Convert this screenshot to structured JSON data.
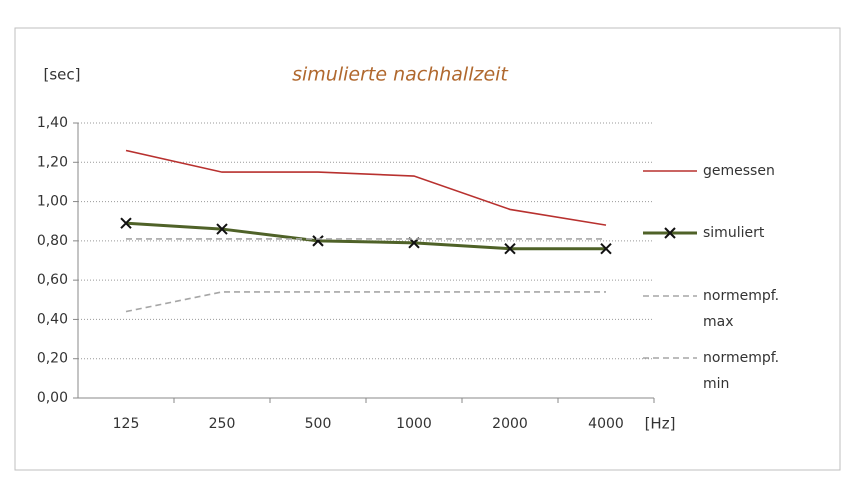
{
  "chart_data": {
    "type": "line",
    "title": "simulierte nachhallzeit",
    "y_label": "[sec]",
    "x_label": "[Hz]",
    "categories": [
      "125",
      "250",
      "500",
      "1000",
      "2000",
      "4000"
    ],
    "ylim": [
      0,
      1.4
    ],
    "yticks": [
      {
        "value": 0,
        "label": "0,00"
      },
      {
        "value": 0.2,
        "label": "0,20"
      },
      {
        "value": 0.4,
        "label": "0,40"
      },
      {
        "value": 0.6,
        "label": "0,60"
      },
      {
        "value": 0.8,
        "label": "0,80"
      },
      {
        "value": 1.0,
        "label": "1,00"
      },
      {
        "value": 1.2,
        "label": "1,20"
      },
      {
        "value": 1.4,
        "label": "1,40"
      }
    ],
    "grid": true,
    "legend": "right",
    "series": [
      {
        "name": "gemessen",
        "color": "#b8312f",
        "line_style": "solid",
        "values": [
          1.26,
          1.15,
          1.15,
          1.13,
          0.96,
          0.88
        ]
      },
      {
        "name": "simuliert",
        "color": "#4f6228",
        "line_style": "solid",
        "marker": "x",
        "values": [
          0.89,
          0.86,
          0.8,
          0.79,
          0.76,
          0.76
        ]
      },
      {
        "name": "normempf. max",
        "color": "#a6a6a6",
        "line_style": "dashed",
        "values": [
          0.81,
          0.81,
          0.81,
          0.81,
          0.81,
          0.81
        ]
      },
      {
        "name": "normempf. min",
        "color": "#a6a6a6",
        "line_style": "dashed",
        "values": [
          0.44,
          0.54,
          0.54,
          0.54,
          0.54,
          0.54
        ]
      }
    ]
  }
}
